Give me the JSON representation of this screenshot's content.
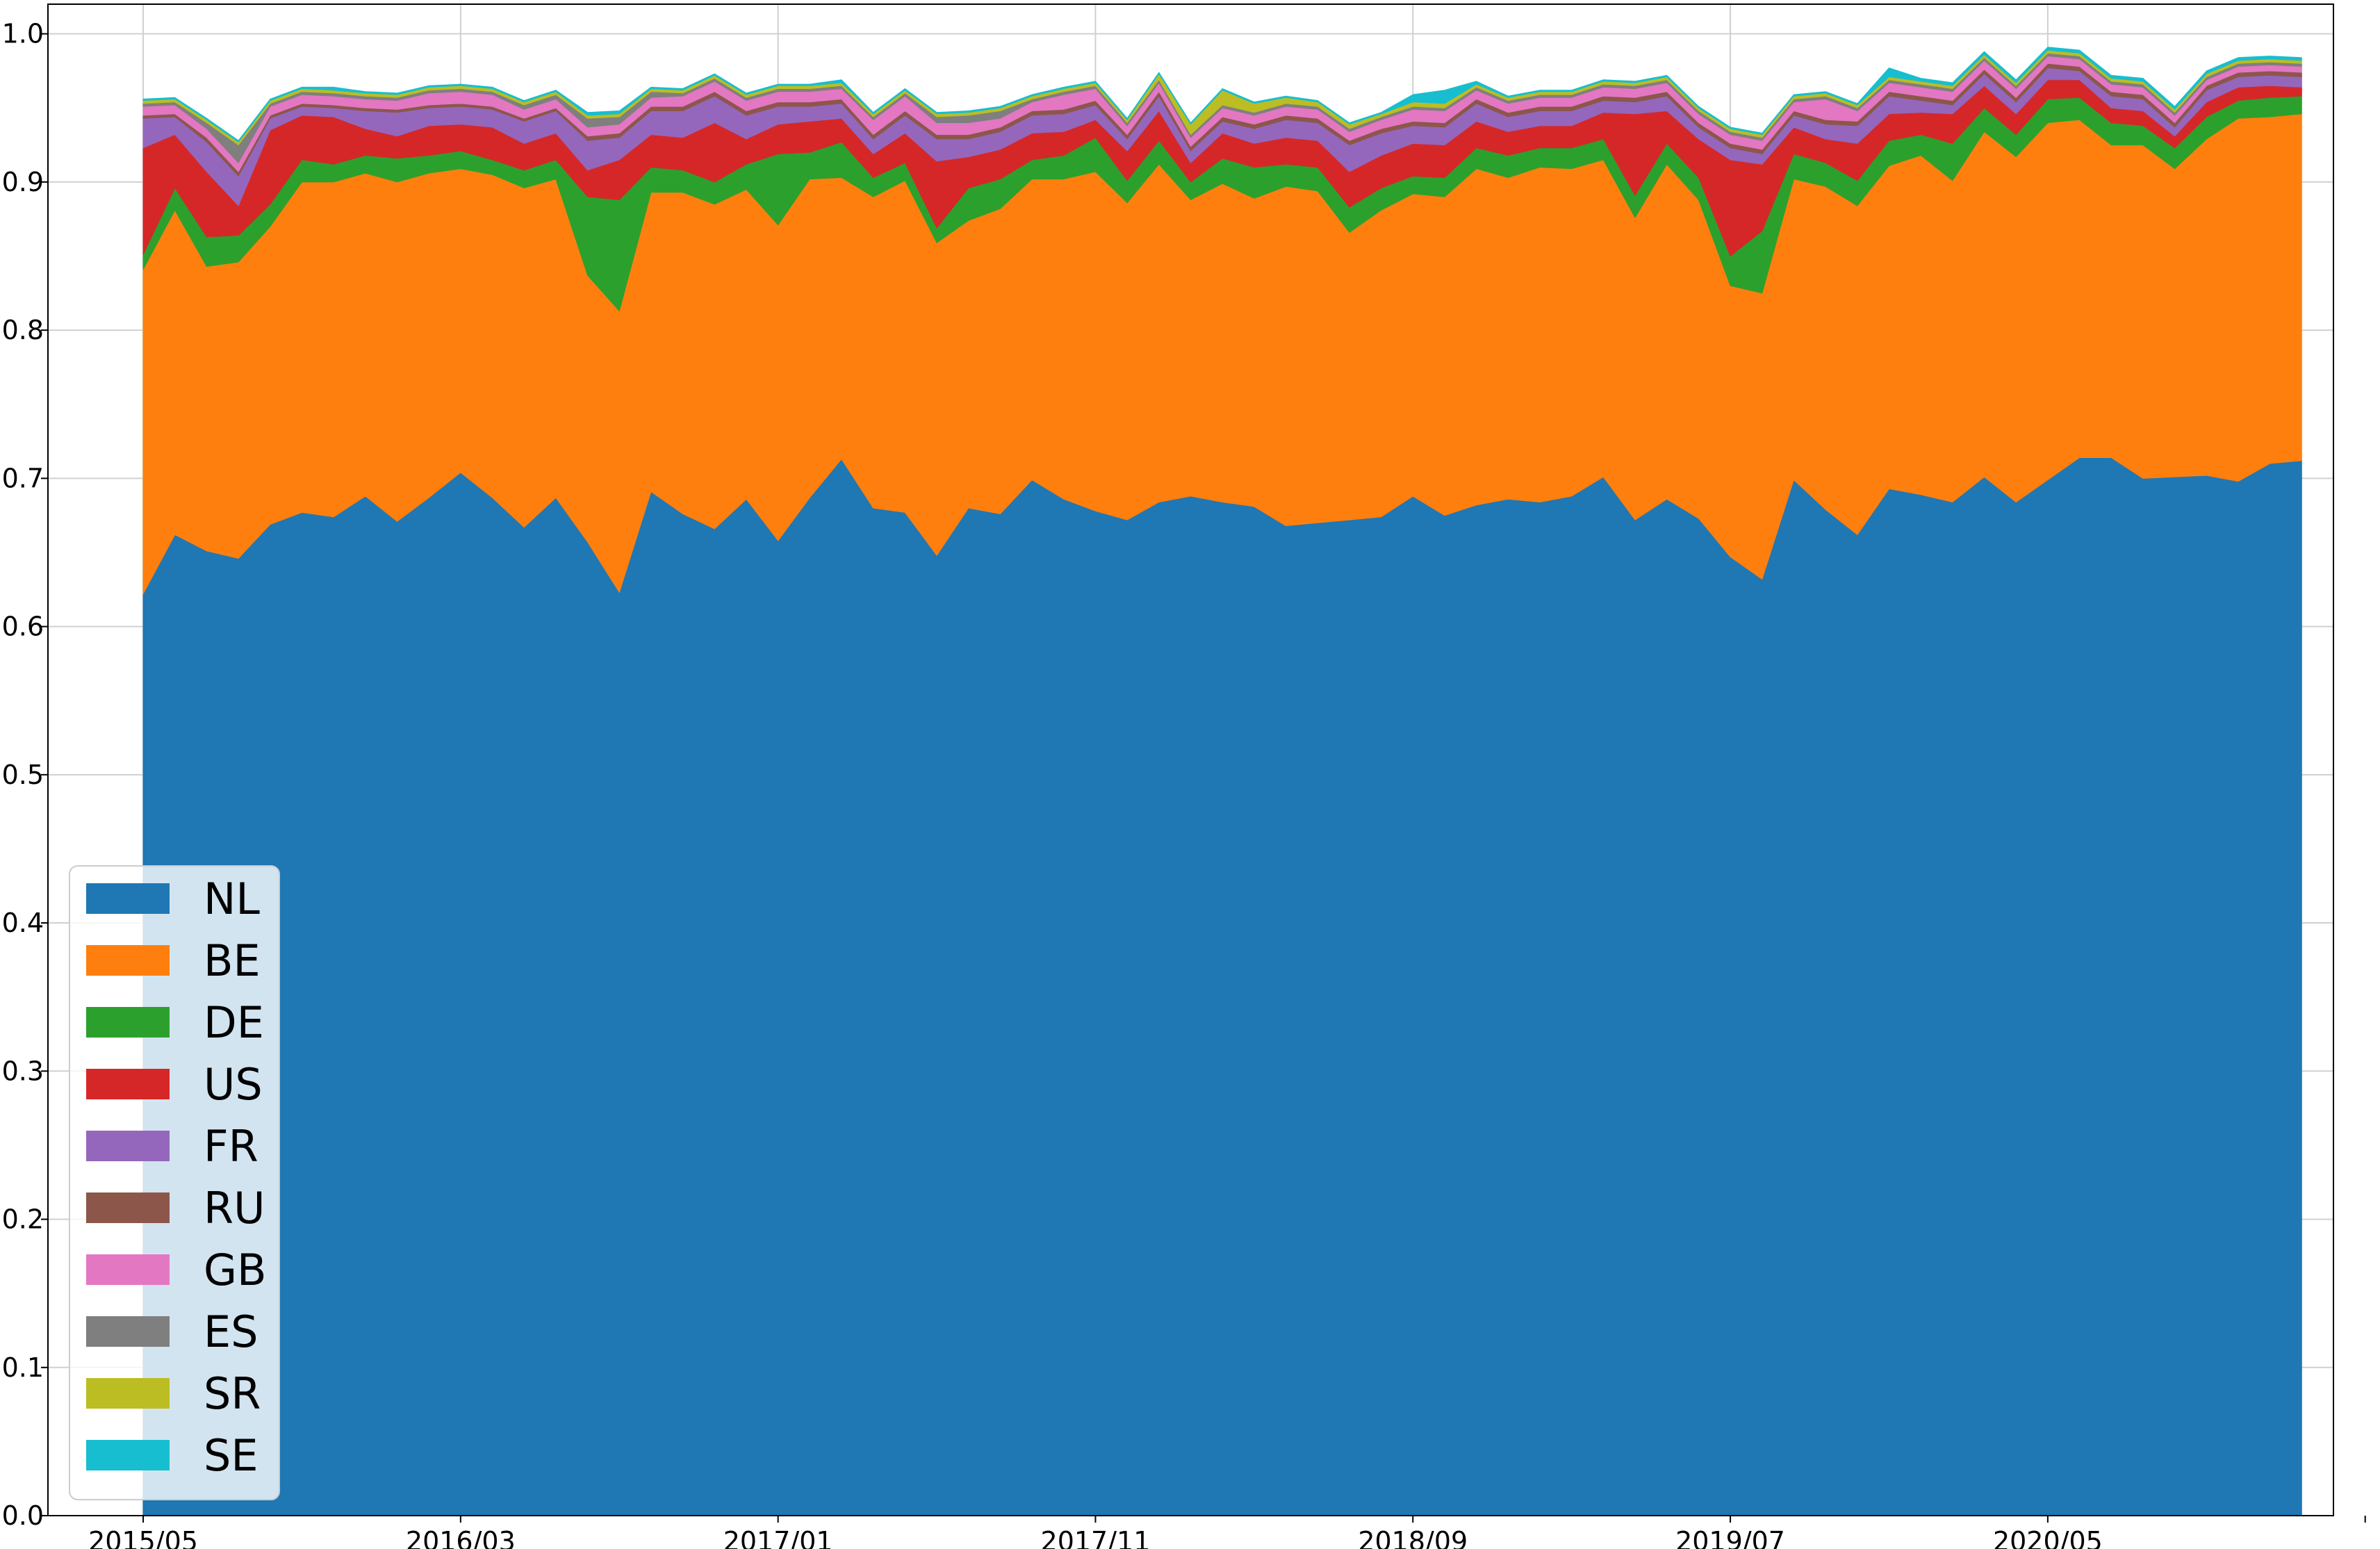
{
  "chart_data": {
    "type": "area",
    "stacked": true,
    "title": "",
    "xlabel": "",
    "ylabel": "",
    "ylim": [
      0,
      1.02
    ],
    "xlim": [
      -3,
      69
    ],
    "grid": true,
    "legend_position": "lower-left",
    "x_tick_labels": [
      "2015/05",
      "2016/03",
      "2017/01",
      "2017/11",
      "2018/09",
      "2019/07",
      "2020/05"
    ],
    "x_tick_positions": [
      0,
      10,
      20,
      30,
      40,
      50,
      60
    ],
    "x_tick_extra": [
      70
    ],
    "y_tick_labels": [
      "0.0",
      "0.1",
      "0.2",
      "0.3",
      "0.4",
      "0.5",
      "0.6",
      "0.7",
      "0.8",
      "0.9",
      "1.0"
    ],
    "y_tick_values": [
      0,
      0.1,
      0.2,
      0.3,
      0.4,
      0.5,
      0.6,
      0.7,
      0.8,
      0.9,
      1.0
    ],
    "x_start_month": "2015/05",
    "x_count": 69,
    "series": [
      {
        "name": "NL",
        "color": "#1f77b4",
        "values": [
          0.622,
          0.662,
          0.651,
          0.646,
          0.669,
          0.677,
          0.674,
          0.688,
          0.671,
          0.687,
          0.704,
          0.687,
          0.667,
          0.687,
          0.657,
          0.623,
          0.691,
          0.676,
          0.666,
          0.686,
          0.658,
          0.687,
          0.713,
          0.68,
          0.677,
          0.648,
          0.68,
          0.676,
          0.699,
          0.686,
          0.678,
          0.672,
          0.684,
          0.688,
          0.684,
          0.681,
          0.668,
          0.67,
          0.672,
          0.674,
          0.688,
          0.675,
          0.682,
          0.686,
          0.684,
          0.688,
          0.701,
          0.672,
          0.686,
          0.673,
          0.647,
          0.632,
          0.699,
          0.679,
          0.662,
          0.693,
          0.689,
          0.684,
          0.701,
          0.684,
          0.699,
          0.714,
          0.714,
          0.7,
          0.701,
          0.702,
          0.698,
          0.71,
          0.712
        ]
      },
      {
        "name": "BE",
        "color": "#ff7f0e",
        "values": [
          0.219,
          0.219,
          0.192,
          0.2,
          0.201,
          0.223,
          0.226,
          0.218,
          0.229,
          0.219,
          0.205,
          0.218,
          0.229,
          0.215,
          0.18,
          0.19,
          0.202,
          0.217,
          0.219,
          0.209,
          0.213,
          0.215,
          0.19,
          0.21,
          0.224,
          0.211,
          0.194,
          0.206,
          0.203,
          0.216,
          0.229,
          0.214,
          0.228,
          0.2,
          0.215,
          0.208,
          0.229,
          0.224,
          0.194,
          0.207,
          0.204,
          0.215,
          0.227,
          0.217,
          0.226,
          0.221,
          0.214,
          0.204,
          0.226,
          0.215,
          0.183,
          0.193,
          0.203,
          0.218,
          0.222,
          0.218,
          0.229,
          0.217,
          0.233,
          0.233,
          0.241,
          0.228,
          0.211,
          0.225,
          0.208,
          0.227,
          0.245,
          0.234,
          0.234
        ]
      },
      {
        "name": "DE",
        "color": "#2ca02c",
        "values": [
          0.01,
          0.015,
          0.02,
          0.018,
          0.015,
          0.015,
          0.012,
          0.012,
          0.016,
          0.012,
          0.012,
          0.01,
          0.012,
          0.013,
          0.053,
          0.075,
          0.017,
          0.015,
          0.015,
          0.017,
          0.048,
          0.018,
          0.024,
          0.013,
          0.012,
          0.01,
          0.022,
          0.02,
          0.013,
          0.016,
          0.023,
          0.015,
          0.016,
          0.012,
          0.017,
          0.021,
          0.015,
          0.016,
          0.017,
          0.015,
          0.012,
          0.013,
          0.014,
          0.015,
          0.013,
          0.014,
          0.014,
          0.015,
          0.014,
          0.015,
          0.02,
          0.042,
          0.017,
          0.016,
          0.017,
          0.017,
          0.014,
          0.025,
          0.016,
          0.015,
          0.016,
          0.015,
          0.015,
          0.013,
          0.014,
          0.015,
          0.012,
          0.013,
          0.012
        ]
      },
      {
        "name": "US",
        "color": "#d62728",
        "values": [
          0.072,
          0.036,
          0.044,
          0.02,
          0.05,
          0.03,
          0.032,
          0.018,
          0.015,
          0.02,
          0.018,
          0.022,
          0.018,
          0.018,
          0.018,
          0.027,
          0.022,
          0.022,
          0.04,
          0.017,
          0.02,
          0.021,
          0.016,
          0.016,
          0.02,
          0.045,
          0.021,
          0.02,
          0.018,
          0.016,
          0.012,
          0.02,
          0.02,
          0.013,
          0.017,
          0.016,
          0.018,
          0.018,
          0.024,
          0.022,
          0.022,
          0.022,
          0.018,
          0.016,
          0.015,
          0.015,
          0.018,
          0.055,
          0.022,
          0.026,
          0.065,
          0.045,
          0.018,
          0.016,
          0.025,
          0.018,
          0.015,
          0.02,
          0.015,
          0.014,
          0.013,
          0.012,
          0.01,
          0.01,
          0.008,
          0.01,
          0.009,
          0.008,
          0.006
        ]
      },
      {
        "name": "FR",
        "color": "#9467bd",
        "values": [
          0.02,
          0.012,
          0.02,
          0.02,
          0.008,
          0.006,
          0.006,
          0.012,
          0.016,
          0.012,
          0.012,
          0.012,
          0.015,
          0.015,
          0.02,
          0.015,
          0.016,
          0.018,
          0.018,
          0.016,
          0.012,
          0.01,
          0.01,
          0.01,
          0.012,
          0.015,
          0.012,
          0.012,
          0.012,
          0.012,
          0.01,
          0.008,
          0.01,
          0.008,
          0.008,
          0.01,
          0.012,
          0.012,
          0.018,
          0.015,
          0.012,
          0.012,
          0.012,
          0.01,
          0.01,
          0.01,
          0.008,
          0.008,
          0.01,
          0.008,
          0.008,
          0.007,
          0.008,
          0.01,
          0.012,
          0.012,
          0.008,
          0.006,
          0.008,
          0.008,
          0.008,
          0.006,
          0.008,
          0.008,
          0.006,
          0.008,
          0.007,
          0.007,
          0.007
        ]
      },
      {
        "name": "RU",
        "color": "#8c564b",
        "values": [
          0.002,
          0.002,
          0.003,
          0.003,
          0.002,
          0.002,
          0.002,
          0.002,
          0.002,
          0.002,
          0.002,
          0.002,
          0.002,
          0.002,
          0.003,
          0.003,
          0.003,
          0.003,
          0.003,
          0.003,
          0.003,
          0.003,
          0.003,
          0.003,
          0.003,
          0.003,
          0.003,
          0.003,
          0.003,
          0.003,
          0.003,
          0.003,
          0.003,
          0.003,
          0.003,
          0.003,
          0.003,
          0.003,
          0.003,
          0.003,
          0.003,
          0.003,
          0.003,
          0.003,
          0.003,
          0.003,
          0.003,
          0.003,
          0.003,
          0.003,
          0.003,
          0.003,
          0.003,
          0.003,
          0.003,
          0.003,
          0.003,
          0.003,
          0.003,
          0.003,
          0.003,
          0.003,
          0.003,
          0.003,
          0.003,
          0.003,
          0.003,
          0.003,
          0.003
        ]
      },
      {
        "name": "GB",
        "color": "#e377c2",
        "values": [
          0.006,
          0.006,
          0.006,
          0.006,
          0.006,
          0.006,
          0.006,
          0.006,
          0.006,
          0.008,
          0.008,
          0.008,
          0.006,
          0.006,
          0.006,
          0.006,
          0.006,
          0.007,
          0.007,
          0.007,
          0.007,
          0.007,
          0.007,
          0.01,
          0.01,
          0.008,
          0.008,
          0.006,
          0.006,
          0.01,
          0.008,
          0.006,
          0.006,
          0.006,
          0.006,
          0.006,
          0.006,
          0.006,
          0.006,
          0.006,
          0.008,
          0.008,
          0.006,
          0.006,
          0.006,
          0.006,
          0.006,
          0.006,
          0.006,
          0.006,
          0.006,
          0.006,
          0.006,
          0.014,
          0.007,
          0.006,
          0.006,
          0.006,
          0.006,
          0.006,
          0.005,
          0.005,
          0.005,
          0.005,
          0.005,
          0.004,
          0.004,
          0.004,
          0.004
        ]
      },
      {
        "name": "ES",
        "color": "#7f7f7f",
        "values": [
          0.002,
          0.002,
          0.004,
          0.012,
          0.002,
          0.002,
          0.002,
          0.002,
          0.002,
          0.002,
          0.002,
          0.002,
          0.003,
          0.003,
          0.006,
          0.005,
          0.004,
          0.002,
          0.002,
          0.002,
          0.002,
          0.002,
          0.002,
          0.002,
          0.002,
          0.004,
          0.005,
          0.005,
          0.002,
          0.002,
          0.002,
          0.002,
          0.002,
          0.002,
          0.002,
          0.002,
          0.002,
          0.002,
          0.002,
          0.002,
          0.002,
          0.002,
          0.002,
          0.002,
          0.002,
          0.002,
          0.002,
          0.002,
          0.002,
          0.002,
          0.002,
          0.002,
          0.002,
          0.002,
          0.002,
          0.002,
          0.002,
          0.002,
          0.002,
          0.002,
          0.002,
          0.002,
          0.002,
          0.002,
          0.002,
          0.002,
          0.002,
          0.002,
          0.002
        ]
      },
      {
        "name": "SR",
        "color": "#bcbd22",
        "values": [
          0.002,
          0.002,
          0.002,
          0.002,
          0.002,
          0.002,
          0.002,
          0.002,
          0.002,
          0.002,
          0.002,
          0.002,
          0.002,
          0.002,
          0.002,
          0.002,
          0.002,
          0.002,
          0.002,
          0.002,
          0.002,
          0.002,
          0.002,
          0.002,
          0.002,
          0.002,
          0.002,
          0.002,
          0.002,
          0.002,
          0.002,
          0.002,
          0.004,
          0.007,
          0.01,
          0.006,
          0.004,
          0.003,
          0.003,
          0.002,
          0.003,
          0.003,
          0.002,
          0.002,
          0.002,
          0.002,
          0.002,
          0.002,
          0.002,
          0.002,
          0.002,
          0.002,
          0.002,
          0.002,
          0.002,
          0.002,
          0.002,
          0.002,
          0.002,
          0.002,
          0.002,
          0.002,
          0.002,
          0.002,
          0.002,
          0.002,
          0.002,
          0.002,
          0.002
        ]
      },
      {
        "name": "SE",
        "color": "#17becf",
        "values": [
          0.001,
          0.001,
          0.001,
          0.001,
          0.001,
          0.001,
          0.002,
          0.001,
          0.001,
          0.001,
          0.001,
          0.001,
          0.001,
          0.001,
          0.002,
          0.002,
          0.001,
          0.001,
          0.001,
          0.001,
          0.001,
          0.001,
          0.002,
          0.001,
          0.001,
          0.001,
          0.001,
          0.001,
          0.001,
          0.001,
          0.001,
          0.001,
          0.001,
          0.001,
          0.001,
          0.001,
          0.001,
          0.001,
          0.001,
          0.001,
          0.005,
          0.009,
          0.002,
          0.001,
          0.001,
          0.001,
          0.001,
          0.001,
          0.001,
          0.001,
          0.001,
          0.001,
          0.001,
          0.001,
          0.001,
          0.006,
          0.002,
          0.002,
          0.002,
          0.002,
          0.002,
          0.002,
          0.002,
          0.002,
          0.002,
          0.002,
          0.002,
          0.002,
          0.002
        ]
      }
    ]
  }
}
